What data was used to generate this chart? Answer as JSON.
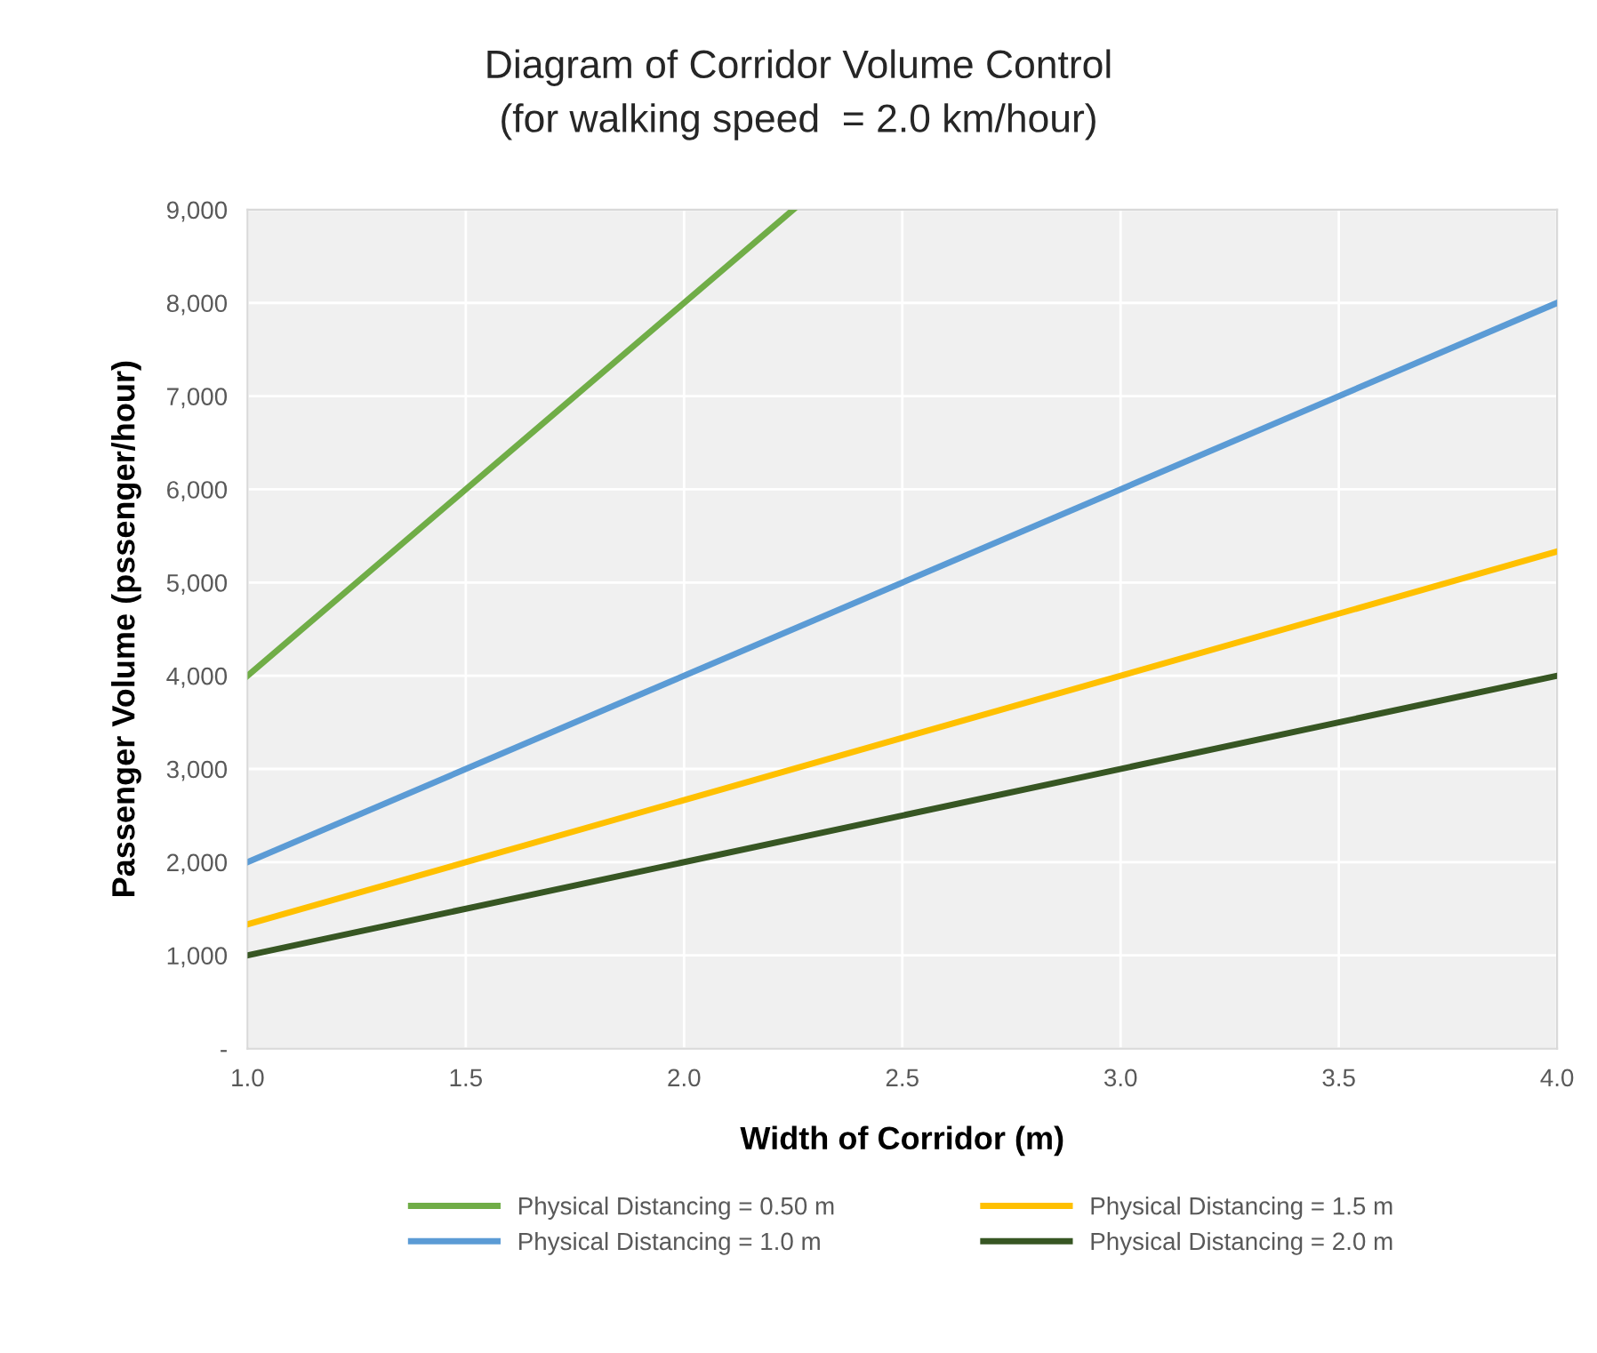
{
  "chart_data": {
    "type": "line",
    "title": "Diagram of Corridor Volume Control\n(for walking speed  = 2.0 km/hour)",
    "xlabel": "Width of Corridor (m)",
    "ylabel": "Passenger Volume (pssenger/hour)",
    "series": [
      {
        "name": "Physical Distancing = 0.50 m",
        "color": "#70ad47",
        "x": [
          1.0,
          2.25
        ],
        "values": [
          4000,
          9000
        ]
      },
      {
        "name": "Physical Distancing = 1.0 m",
        "color": "#5b9bd5",
        "x": [
          1.0,
          4.0
        ],
        "values": [
          2000,
          8000
        ]
      },
      {
        "name": "Physical Distancing = 1.5 m",
        "color": "#ffc000",
        "x": [
          1.0,
          4.0
        ],
        "values": [
          1333,
          5333
        ]
      },
      {
        "name": "Physical Distancing = 2.0 m",
        "color": "#375623",
        "x": [
          1.0,
          4.0
        ],
        "values": [
          1000,
          4000
        ]
      }
    ],
    "xlim": [
      1.0,
      4.0
    ],
    "xticks": [
      {
        "value": 1.0,
        "label": "1.0"
      },
      {
        "value": 1.5,
        "label": "1.5"
      },
      {
        "value": 2.0,
        "label": "2.0"
      },
      {
        "value": 2.5,
        "label": "2.5"
      },
      {
        "value": 3.0,
        "label": "3.0"
      },
      {
        "value": 3.5,
        "label": "3.5"
      },
      {
        "value": 4.0,
        "label": "4.0"
      }
    ],
    "ylim": [
      0,
      9000
    ],
    "yticks": [
      {
        "value": 0,
        "label": "-"
      },
      {
        "value": 1000,
        "label": "1,000"
      },
      {
        "value": 2000,
        "label": "2,000"
      },
      {
        "value": 3000,
        "label": "3,000"
      },
      {
        "value": 4000,
        "label": "4,000"
      },
      {
        "value": 5000,
        "label": "5,000"
      },
      {
        "value": 6000,
        "label": "6,000"
      },
      {
        "value": 7000,
        "label": "7,000"
      },
      {
        "value": 8000,
        "label": "8,000"
      },
      {
        "value": 9000,
        "label": "9,000"
      }
    ],
    "grid": true,
    "legend": "bottom",
    "marker": "none",
    "line_style": "solid"
  }
}
